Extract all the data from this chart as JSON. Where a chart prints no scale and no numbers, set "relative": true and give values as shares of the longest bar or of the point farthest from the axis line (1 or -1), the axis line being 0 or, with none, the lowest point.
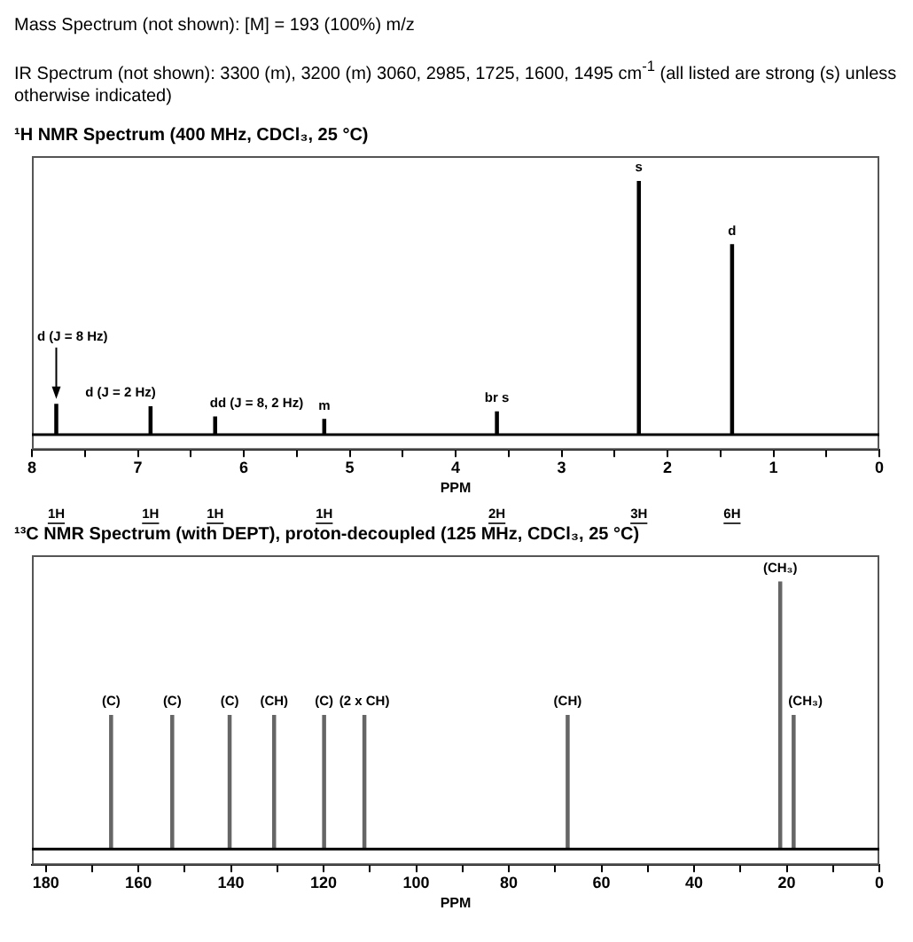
{
  "chart_data": [
    {
      "type": "other",
      "annotations": [
        "Mass Spectrum (not shown):  [M] = 193 (100%) m/z",
        "IR Spectrum (not shown):  3300 (m), 3200 (m) 3060, 2985, 1725, 1600, 1495 cm$^{-1}$ (all listed are strong (s) unless otherwise indicated)"
      ]
    },
    {
      "type": "bar",
      "title": "¹H NMR Spectrum (400 MHz, CDCl₃, 25 °C)",
      "xlabel": "PPM",
      "relative": true,
      "color": "#000000",
      "x": [
        7.77,
        6.88,
        6.27,
        5.24,
        3.61,
        2.27,
        1.39
      ],
      "values": [
        0.12,
        0.11,
        0.07,
        0.06,
        0.09,
        1,
        0.75
      ],
      "xlim": [
        8,
        0
      ],
      "xticks": [
        8,
        {
          "value": 7.5,
          "label": null
        },
        7,
        {
          "value": 6.5,
          "label": null
        },
        6,
        {
          "value": 5.5,
          "label": null
        },
        5,
        {
          "value": 4.5,
          "label": null
        },
        4,
        {
          "value": 3.5,
          "label": null
        },
        3,
        {
          "value": 2.5,
          "label": null
        },
        2,
        {
          "value": 1.5,
          "label": null
        },
        1,
        {
          "value": 0.5,
          "label": null
        },
        0
      ],
      "annotations": [
        {
          "text": "d (J = 8 Hz)",
          "x": 7.77,
          "y": 0.12
        },
        {
          "text": "d (J = 2 Hz)",
          "x": 6.88,
          "y": 0.11
        },
        {
          "text": "dd (J = 8, 2 Hz)",
          "x": 6.27,
          "y": 0.07
        },
        {
          "text": "m",
          "x": 5.24,
          "y": 0.06
        },
        {
          "text": "br s",
          "x": 3.61,
          "y": 0.09
        },
        {
          "text": "s",
          "x": 2.27,
          "y": 1
        },
        {
          "text": "d",
          "x": 1.39,
          "y": 0.75
        },
        "1H",
        "1H",
        "1H",
        "1H",
        "2H",
        "3H",
        "6H"
      ]
    },
    {
      "type": "bar",
      "title": "¹³C NMR Spectrum (with DEPT), proton-decoupled (125 MHz, CDCl₃, 25 °C)",
      "xlabel": "PPM",
      "relative": true,
      "color": "#666666",
      "x": [
        165.9,
        152.7,
        140.3,
        130.7,
        119.9,
        111.2,
        67.3,
        21.4,
        18.5
      ],
      "values": [
        0.5,
        0.5,
        0.5,
        0.5,
        0.5,
        0.5,
        0.5,
        1,
        0.5
      ],
      "xlim": [
        183,
        0
      ],
      "xticks": [
        180,
        {
          "value": 170,
          "label": null
        },
        160,
        {
          "value": 150,
          "label": null
        },
        140,
        {
          "value": 130,
          "label": null
        },
        120,
        {
          "value": 110,
          "label": null
        },
        100,
        {
          "value": 90,
          "label": null
        },
        80,
        {
          "value": 70,
          "label": null
        },
        60,
        {
          "value": 50,
          "label": null
        },
        40,
        {
          "value": 30,
          "label": null
        },
        20,
        {
          "value": 10,
          "label": null
        },
        0
      ],
      "annotations": [
        {
          "text": "(C)",
          "x": 165.9,
          "y": 0.5
        },
        {
          "text": "(C)",
          "x": 152.7,
          "y": 0.5
        },
        {
          "text": "(C)",
          "x": 140.3,
          "y": 0.5
        },
        {
          "text": "(CH)",
          "x": 130.7,
          "y": 0.5
        },
        {
          "text": "(C)",
          "x": 119.9,
          "y": 0.5
        },
        {
          "text": "(2 x CH)",
          "x": 111.2,
          "y": 0.5
        },
        {
          "text": "(CH)",
          "x": 67.3,
          "y": 0.5
        },
        {
          "text": "(CH₃)",
          "x": 21.4,
          "y": 1
        },
        {
          "text": "(CH₃)",
          "x": 18.5,
          "y": 0.5
        }
      ]
    }
  ]
}
